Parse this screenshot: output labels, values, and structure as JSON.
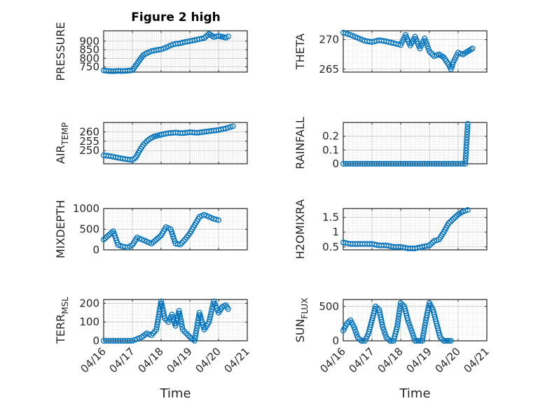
{
  "figure": {
    "title": "Figure 2 high",
    "marker_color": "#0072BD",
    "axis_color": "#262626",
    "grid_color": "#d6d6d6"
  },
  "chart_data": [
    {
      "id": "pressure",
      "type": "scatter",
      "ylabel": "PRESSURE",
      "ylabel_sub": "",
      "ylim": [
        720,
        960
      ],
      "yticks": [
        750,
        800,
        850,
        900
      ],
      "ytick_labels": [
        "750",
        "800",
        "850",
        "900"
      ],
      "xlim": [
        "2021-04-16",
        "2021-04-21"
      ],
      "xticks": [
        "2021-04-16",
        "2021-04-17",
        "2021-04-18",
        "2021-04-19",
        "2021-04-20",
        "2021-04-21"
      ],
      "xtick_labels": [
        "",
        "",
        "",
        "",
        "",
        ""
      ],
      "points": [
        [
          "2021-04-16",
          730
        ],
        [
          "2021-04-16 04:00",
          726
        ],
        [
          "2021-04-16 08:00",
          725
        ],
        [
          "2021-04-16 12:00",
          727
        ],
        [
          "2021-04-16 16:00",
          726
        ],
        [
          "2021-04-16 20:00",
          728
        ],
        [
          "2021-04-17",
          731
        ],
        [
          "2021-04-17 03:00",
          760
        ],
        [
          "2021-04-17 06:00",
          790
        ],
        [
          "2021-04-17 09:00",
          818
        ],
        [
          "2021-04-17 12:00",
          830
        ],
        [
          "2021-04-17 16:00",
          842
        ],
        [
          "2021-04-17 20:00",
          848
        ],
        [
          "2021-04-18",
          852
        ],
        [
          "2021-04-18 04:00",
          862
        ],
        [
          "2021-04-18 08:00",
          876
        ],
        [
          "2021-04-18 12:00",
          884
        ],
        [
          "2021-04-18 16:00",
          888
        ],
        [
          "2021-04-18 20:00",
          895
        ],
        [
          "2021-04-19",
          900
        ],
        [
          "2021-04-19 04:00",
          906
        ],
        [
          "2021-04-19 08:00",
          912
        ],
        [
          "2021-04-19 12:00",
          918
        ],
        [
          "2021-04-19 16:00",
          942
        ],
        [
          "2021-04-19 20:00",
          924
        ],
        [
          "2021-04-20",
          930
        ],
        [
          "2021-04-20 03:00",
          925
        ],
        [
          "2021-04-20 06:00",
          920
        ],
        [
          "2021-04-20 08:00",
          927
        ]
      ]
    },
    {
      "id": "theta",
      "type": "scatter",
      "ylabel": "THETA",
      "ylabel_sub": "",
      "ylim": [
        264.5,
        271.5
      ],
      "yticks": [
        265,
        270
      ],
      "ytick_labels": [
        "265",
        "270"
      ],
      "xlim": [
        "2021-04-16",
        "2021-04-21"
      ],
      "xticks": [
        "2021-04-16",
        "2021-04-17",
        "2021-04-18",
        "2021-04-19",
        "2021-04-20",
        "2021-04-21"
      ],
      "xtick_labels": [
        "",
        "",
        "",
        "",
        "",
        ""
      ],
      "points": [
        [
          "2021-04-16",
          271.2
        ],
        [
          "2021-04-16 06:00",
          270.8
        ],
        [
          "2021-04-16 12:00",
          270.3
        ],
        [
          "2021-04-16 18:00",
          269.8
        ],
        [
          "2021-04-17",
          269.6
        ],
        [
          "2021-04-17 06:00",
          269.9
        ],
        [
          "2021-04-17 12:00",
          269.7
        ],
        [
          "2021-04-17 18:00",
          269.4
        ],
        [
          "2021-04-18",
          269.1
        ],
        [
          "2021-04-18 04:00",
          270.8
        ],
        [
          "2021-04-18 08:00",
          269.0
        ],
        [
          "2021-04-18 12:00",
          270.5
        ],
        [
          "2021-04-18 16:00",
          268.5
        ],
        [
          "2021-04-18 20:00",
          270.2
        ],
        [
          "2021-04-19",
          268.0
        ],
        [
          "2021-04-19 04:00",
          267.2
        ],
        [
          "2021-04-19 08:00",
          267.5
        ],
        [
          "2021-04-19 12:00",
          267.0
        ],
        [
          "2021-04-19 16:00",
          265.8
        ],
        [
          "2021-04-19 18:00",
          265.0
        ],
        [
          "2021-04-19 20:00",
          266.2
        ],
        [
          "2021-04-20",
          267.8
        ],
        [
          "2021-04-20 04:00",
          267.5
        ],
        [
          "2021-04-20 08:00",
          268.0
        ],
        [
          "2021-04-20 12:00",
          268.5
        ]
      ]
    },
    {
      "id": "air_temp",
      "type": "scatter",
      "ylabel": "AIR",
      "ylabel_sub": "TEMP",
      "ylim": [
        243,
        265
      ],
      "yticks": [
        250,
        255,
        260
      ],
      "ytick_labels": [
        "250",
        "255",
        "260"
      ],
      "xlim": [
        "2021-04-16",
        "2021-04-21"
      ],
      "xticks": [
        "2021-04-16",
        "2021-04-17",
        "2021-04-18",
        "2021-04-19",
        "2021-04-20",
        "2021-04-21"
      ],
      "xtick_labels": [
        "",
        "",
        "",
        "",
        "",
        ""
      ],
      "points": [
        [
          "2021-04-16",
          247.5
        ],
        [
          "2021-04-16 06:00",
          247
        ],
        [
          "2021-04-16 12:00",
          246.2
        ],
        [
          "2021-04-16 18:00",
          245.5
        ],
        [
          "2021-04-17",
          245
        ],
        [
          "2021-04-17 03:00",
          246.5
        ],
        [
          "2021-04-17 06:00",
          250
        ],
        [
          "2021-04-17 09:00",
          253
        ],
        [
          "2021-04-17 12:00",
          255
        ],
        [
          "2021-04-17 15:00",
          256.5
        ],
        [
          "2021-04-17 18:00",
          257.5
        ],
        [
          "2021-04-17 21:00",
          258
        ],
        [
          "2021-04-18",
          258.5
        ],
        [
          "2021-04-18 06:00",
          259.3
        ],
        [
          "2021-04-18 12:00",
          259.6
        ],
        [
          "2021-04-18 18:00",
          259.3
        ],
        [
          "2021-04-19",
          259.8
        ],
        [
          "2021-04-19 06:00",
          259.5
        ],
        [
          "2021-04-19 12:00",
          260
        ],
        [
          "2021-04-19 18:00",
          260.5
        ],
        [
          "2021-04-20",
          261
        ],
        [
          "2021-04-20 06:00",
          261.8
        ],
        [
          "2021-04-20 12:00",
          263
        ]
      ]
    },
    {
      "id": "rainfall",
      "type": "scatter",
      "ylabel": "RAINFALL",
      "ylabel_sub": "",
      "ylim": [
        0,
        0.3
      ],
      "yticks": [
        0,
        0.1,
        0.2
      ],
      "ytick_labels": [
        "0",
        "0.1",
        "0.2"
      ],
      "xlim": [
        "2021-04-16",
        "2021-04-21"
      ],
      "xticks": [
        "2021-04-16",
        "2021-04-17",
        "2021-04-18",
        "2021-04-19",
        "2021-04-20",
        "2021-04-21"
      ],
      "xtick_labels": [
        "",
        "",
        "",
        "",
        "",
        ""
      ],
      "points": [
        [
          "2021-04-16",
          0
        ],
        [
          "2021-04-16 06:00",
          0
        ],
        [
          "2021-04-16 12:00",
          0
        ],
        [
          "2021-04-16 18:00",
          0
        ],
        [
          "2021-04-17",
          0
        ],
        [
          "2021-04-17 06:00",
          0
        ],
        [
          "2021-04-17 12:00",
          0
        ],
        [
          "2021-04-17 18:00",
          0
        ],
        [
          "2021-04-18",
          0
        ],
        [
          "2021-04-18 06:00",
          0
        ],
        [
          "2021-04-18 12:00",
          0
        ],
        [
          "2021-04-18 18:00",
          0
        ],
        [
          "2021-04-19",
          0
        ],
        [
          "2021-04-19 06:00",
          0
        ],
        [
          "2021-04-19 12:00",
          0
        ],
        [
          "2021-04-19 18:00",
          0
        ],
        [
          "2021-04-20",
          0
        ],
        [
          "2021-04-20 06:00",
          0
        ],
        [
          "2021-04-20 08:00",
          0.29
        ]
      ]
    },
    {
      "id": "mixdepth",
      "type": "scatter",
      "ylabel": "MIXDEPTH",
      "ylabel_sub": "",
      "ylim": [
        0,
        1000
      ],
      "yticks": [
        0,
        500,
        1000
      ],
      "ytick_labels": [
        "0",
        "500",
        "1000"
      ],
      "xlim": [
        "2021-04-16",
        "2021-04-21"
      ],
      "xticks": [
        "2021-04-16",
        "2021-04-17",
        "2021-04-18",
        "2021-04-19",
        "2021-04-20",
        "2021-04-21"
      ],
      "xtick_labels": [
        "",
        "",
        "",
        "",
        "",
        ""
      ],
      "points": [
        [
          "2021-04-16",
          250
        ],
        [
          "2021-04-16 04:00",
          350
        ],
        [
          "2021-04-16 08:00",
          450
        ],
        [
          "2021-04-16 12:00",
          120
        ],
        [
          "2021-04-16 16:00",
          80
        ],
        [
          "2021-04-16 20:00",
          60
        ],
        [
          "2021-04-17",
          120
        ],
        [
          "2021-04-17 04:00",
          300
        ],
        [
          "2021-04-17 08:00",
          250
        ],
        [
          "2021-04-17 12:00",
          200
        ],
        [
          "2021-04-17 16:00",
          150
        ],
        [
          "2021-04-17 20:00",
          250
        ],
        [
          "2021-04-18",
          350
        ],
        [
          "2021-04-18 04:00",
          550
        ],
        [
          "2021-04-18 08:00",
          500
        ],
        [
          "2021-04-18 12:00",
          150
        ],
        [
          "2021-04-18 16:00",
          130
        ],
        [
          "2021-04-18 20:00",
          250
        ],
        [
          "2021-04-19",
          400
        ],
        [
          "2021-04-19 04:00",
          600
        ],
        [
          "2021-04-19 08:00",
          800
        ],
        [
          "2021-04-19 12:00",
          850
        ],
        [
          "2021-04-19 16:00",
          800
        ],
        [
          "2021-04-19 20:00",
          750
        ],
        [
          "2021-04-20",
          720
        ]
      ]
    },
    {
      "id": "h2omixra",
      "type": "scatter",
      "ylabel": "H2OMIXRA",
      "ylabel_sub": "",
      "ylim": [
        0.4,
        1.8
      ],
      "yticks": [
        0.5,
        1,
        1.5
      ],
      "ytick_labels": [
        "0.5",
        "1",
        "1.5"
      ],
      "xlim": [
        "2021-04-16",
        "2021-04-21"
      ],
      "xticks": [
        "2021-04-16",
        "2021-04-17",
        "2021-04-18",
        "2021-04-19",
        "2021-04-20",
        "2021-04-21"
      ],
      "xtick_labels": [
        "",
        "",
        "",
        "",
        "",
        ""
      ],
      "points": [
        [
          "2021-04-16",
          0.65
        ],
        [
          "2021-04-16 06:00",
          0.6
        ],
        [
          "2021-04-16 12:00",
          0.6
        ],
        [
          "2021-04-16 18:00",
          0.6
        ],
        [
          "2021-04-17",
          0.6
        ],
        [
          "2021-04-17 06:00",
          0.55
        ],
        [
          "2021-04-17 12:00",
          0.55
        ],
        [
          "2021-04-17 18:00",
          0.5
        ],
        [
          "2021-04-18",
          0.5
        ],
        [
          "2021-04-18 06:00",
          0.45
        ],
        [
          "2021-04-18 12:00",
          0.45
        ],
        [
          "2021-04-18 18:00",
          0.5
        ],
        [
          "2021-04-19",
          0.55
        ],
        [
          "2021-04-19 04:00",
          0.7
        ],
        [
          "2021-04-19 08:00",
          0.75
        ],
        [
          "2021-04-19 12:00",
          1.0
        ],
        [
          "2021-04-19 16:00",
          1.3
        ],
        [
          "2021-04-19 20:00",
          1.45
        ],
        [
          "2021-04-20",
          1.6
        ],
        [
          "2021-04-20 04:00",
          1.7
        ],
        [
          "2021-04-20 08:00",
          1.75
        ]
      ]
    },
    {
      "id": "terr_msl",
      "type": "scatter",
      "ylabel": "TERR",
      "ylabel_sub": "MSL",
      "ylim": [
        0,
        220
      ],
      "yticks": [
        0,
        100,
        200
      ],
      "ytick_labels": [
        "0",
        "100",
        "200"
      ],
      "xlim": [
        "2021-04-16",
        "2021-04-21"
      ],
      "xticks": [
        "2021-04-16",
        "2021-04-17",
        "2021-04-18",
        "2021-04-19",
        "2021-04-20",
        "2021-04-21"
      ],
      "xtick_labels": [
        "04/16",
        "04/17",
        "04/18",
        "04/19",
        "04/20",
        "04/21"
      ],
      "xlabel": "Time",
      "points": [
        [
          "2021-04-16",
          0
        ],
        [
          "2021-04-16 06:00",
          0
        ],
        [
          "2021-04-16 12:00",
          0
        ],
        [
          "2021-04-16 18:00",
          0
        ],
        [
          "2021-04-17",
          0
        ],
        [
          "2021-04-17 04:00",
          10
        ],
        [
          "2021-04-17 08:00",
          20
        ],
        [
          "2021-04-17 12:00",
          40
        ],
        [
          "2021-04-17 16:00",
          30
        ],
        [
          "2021-04-17 20:00",
          60
        ],
        [
          "2021-04-18",
          210
        ],
        [
          "2021-04-18 03:00",
          120
        ],
        [
          "2021-04-18 06:00",
          100
        ],
        [
          "2021-04-18 09:00",
          140
        ],
        [
          "2021-04-18 12:00",
          80
        ],
        [
          "2021-04-18 15:00",
          160
        ],
        [
          "2021-04-18 18:00",
          60
        ],
        [
          "2021-04-18 21:00",
          40
        ],
        [
          "2021-04-19",
          20
        ],
        [
          "2021-04-19 04:00",
          0
        ],
        [
          "2021-04-19 08:00",
          150
        ],
        [
          "2021-04-19 12:00",
          60
        ],
        [
          "2021-04-19 16:00",
          100
        ],
        [
          "2021-04-19 20:00",
          210
        ],
        [
          "2021-04-20",
          150
        ],
        [
          "2021-04-20 03:00",
          180
        ],
        [
          "2021-04-20 06:00",
          190
        ],
        [
          "2021-04-20 08:00",
          170
        ]
      ]
    },
    {
      "id": "sun_flux",
      "type": "scatter",
      "ylabel": "SUN",
      "ylabel_sub": "FLUX",
      "ylim": [
        0,
        600
      ],
      "yticks": [
        0,
        500
      ],
      "ytick_labels": [
        "0",
        "500"
      ],
      "xlim": [
        "2021-04-16",
        "2021-04-21"
      ],
      "xticks": [
        "2021-04-16",
        "2021-04-17",
        "2021-04-18",
        "2021-04-19",
        "2021-04-20",
        "2021-04-21"
      ],
      "xtick_labels": [
        "04/16",
        "04/17",
        "04/18",
        "04/19",
        "04/20",
        "04/21"
      ],
      "xlabel": "Time",
      "points": [
        [
          "2021-04-16",
          150
        ],
        [
          "2021-04-16 03:00",
          250
        ],
        [
          "2021-04-16 06:00",
          300
        ],
        [
          "2021-04-16 09:00",
          200
        ],
        [
          "2021-04-16 12:00",
          50
        ],
        [
          "2021-04-16 15:00",
          0
        ],
        [
          "2021-04-16 18:00",
          0
        ],
        [
          "2021-04-16 21:00",
          100
        ],
        [
          "2021-04-17",
          300
        ],
        [
          "2021-04-17 03:00",
          500
        ],
        [
          "2021-04-17 06:00",
          450
        ],
        [
          "2021-04-17 09:00",
          200
        ],
        [
          "2021-04-17 12:00",
          50
        ],
        [
          "2021-04-17 15:00",
          0
        ],
        [
          "2021-04-17 18:00",
          0
        ],
        [
          "2021-04-17 21:00",
          200
        ],
        [
          "2021-04-18",
          550
        ],
        [
          "2021-04-18 03:00",
          500
        ],
        [
          "2021-04-18 06:00",
          300
        ],
        [
          "2021-04-18 09:00",
          150
        ],
        [
          "2021-04-18 12:00",
          0
        ],
        [
          "2021-04-18 15:00",
          0
        ],
        [
          "2021-04-18 18:00",
          0
        ],
        [
          "2021-04-18 21:00",
          300
        ],
        [
          "2021-04-19",
          550
        ],
        [
          "2021-04-19 03:00",
          450
        ],
        [
          "2021-04-19 06:00",
          250
        ],
        [
          "2021-04-19 09:00",
          50
        ],
        [
          "2021-04-19 12:00",
          0
        ],
        [
          "2021-04-19 15:00",
          0
        ],
        [
          "2021-04-19 18:00",
          0
        ]
      ]
    }
  ]
}
